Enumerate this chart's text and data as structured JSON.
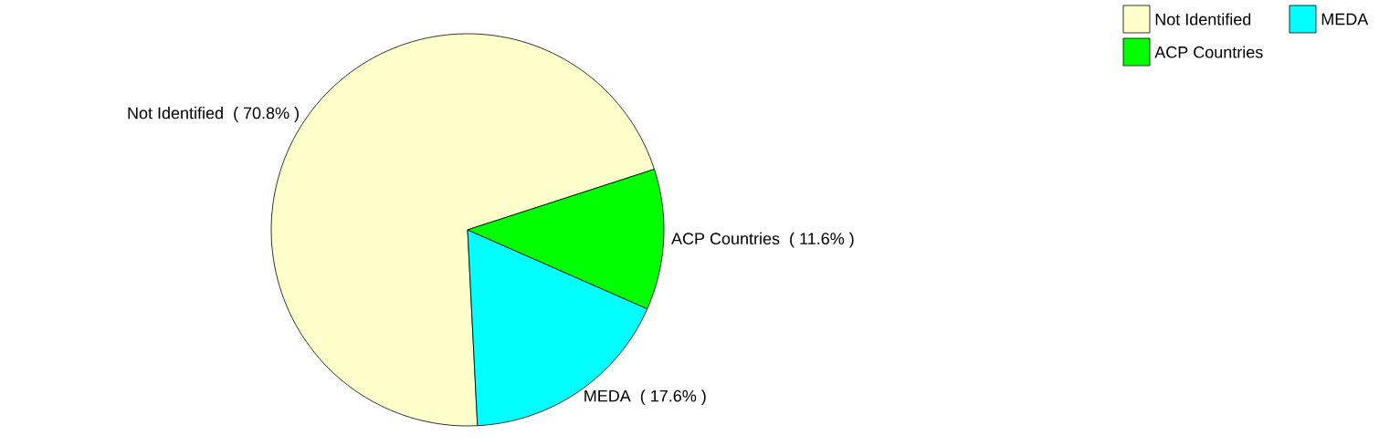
{
  "chart_data": {
    "type": "pie",
    "categories": [
      "Not Identified",
      "MEDA",
      "ACP Countries"
    ],
    "values": [
      70.8,
      17.6,
      11.6
    ],
    "value_labels": [
      "( 70.8% )",
      "( 17.6% )",
      "( 11.6% )"
    ],
    "colors": [
      "#ffffcc",
      "#00ffff",
      "#00ff00"
    ],
    "legend": "top right"
  }
}
